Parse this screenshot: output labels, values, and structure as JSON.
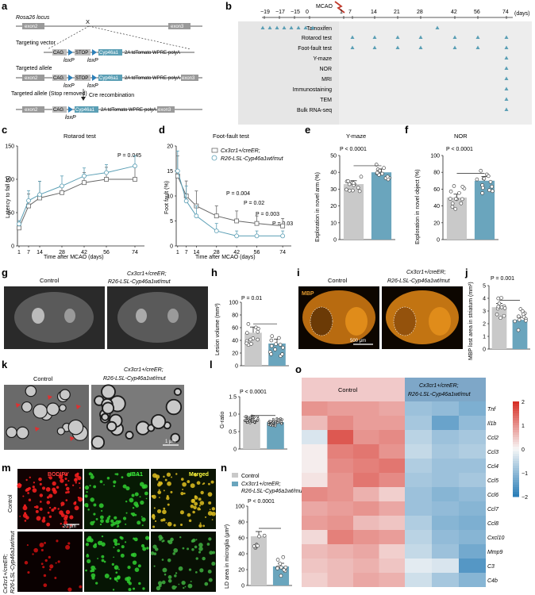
{
  "panel_labels": [
    "a",
    "b",
    "c",
    "d",
    "e",
    "f",
    "g",
    "h",
    "i",
    "j",
    "k",
    "l",
    "m",
    "n",
    "o"
  ],
  "panel_a": {
    "locus_label": "Rosa26 locus",
    "vector_label": "Targeting vector",
    "allele_label": "Targeted allele",
    "removed_label": "Targeted allele (Stop removed)",
    "cre_label": "Cre recombination",
    "exon2": "exon2",
    "exon3": "exon3",
    "cag": "CAG",
    "stop": "STOP",
    "gene": "Cyp46a1",
    "cassette": "2A  tdTomato  WPRE-polyA",
    "loxp": "loxP",
    "cross": "X"
  },
  "panel_b": {
    "mcao_label": "MCAO",
    "days_label": "(days)",
    "ticks": [
      "−19",
      "−17",
      "−15",
      "0",
      "1",
      "7",
      "14",
      "21",
      "28",
      "42",
      "56",
      "74"
    ],
    "rows": [
      "Tamoxifen",
      "Rotarod test",
      "Foot-fault test",
      "Y-maze",
      "NOR",
      "MRI",
      "Immunostaining",
      "TEM",
      "Bulk RNA-seq"
    ]
  },
  "panel_c": {
    "title": "Rotarod test",
    "ylabel": "Latency to fall (s)",
    "xlabel": "Time after MCAO (days)",
    "pvalue": "P = 0.045",
    "xticks": [
      "1",
      "7",
      "14",
      "28",
      "42",
      "56",
      "74"
    ],
    "yticks": [
      "0",
      "50",
      "100",
      "150"
    ]
  },
  "panel_d": {
    "title": "Foot-fault test",
    "ylabel": "Foot fault (%)",
    "xlabel": "Time after MCAO (days)",
    "legend_1": "Cx3cr1+/creER;",
    "legend_2": "R26-LSL-Cyp46a1wt/mut",
    "p1": "P = 0.004",
    "p2": "P = 0.02",
    "p3": "P = 0.003",
    "p4": "P = 0.03",
    "xticks": [
      "1",
      "7",
      "14",
      "28",
      "42",
      "56",
      "74"
    ],
    "yticks": [
      "0",
      "5",
      "10",
      "15",
      "20"
    ]
  },
  "panel_e": {
    "title": "Y-maze",
    "ylabel": "Exploration in novel arm (%)",
    "pvalue": "P < 0.0001",
    "yticks": [
      "0",
      "10",
      "20",
      "30",
      "40",
      "50"
    ]
  },
  "panel_f": {
    "title": "NOR",
    "ylabel": "Exploration in novel object (%)",
    "pvalue": "P < 0.0001",
    "yticks": [
      "0",
      "20",
      "40",
      "60",
      "80",
      "100"
    ]
  },
  "panel_g": {
    "control": "Control",
    "treated_1": "Cx3cr1+/creER;",
    "treated_2": "R26-LSL-Cyp46a1wt/mut"
  },
  "panel_h": {
    "ylabel": "Lesion volume (mm³)",
    "pvalue": "P = 0.01",
    "yticks": [
      "0",
      "20",
      "40",
      "60",
      "80",
      "100"
    ]
  },
  "panel_i": {
    "control": "Control",
    "treated_1": "Cx3cr1+/creER;",
    "treated_2": "R26-LSL-Cyp46a1wt/mut",
    "stain": "MBP",
    "scale": "500 μm"
  },
  "panel_j": {
    "ylabel": "MBP lost area in striatum (mm²)",
    "pvalue": "P = 0.001",
    "yticks": [
      "0",
      "1",
      "2",
      "3",
      "4",
      "5"
    ]
  },
  "panel_k": {
    "control": "Control",
    "treated_1": "Cx3cr1+/creER;",
    "treated_2": "R26-LSL-Cyp46a1wt/mut",
    "scale": "1 μm"
  },
  "panel_l": {
    "ylabel": "G-ratio",
    "pvalue": "P < 0.0001",
    "yticks": [
      "0",
      "0.5",
      "1.0",
      "1.5"
    ]
  },
  "panel_m": {
    "bodipy": "BODIPY",
    "iba1": "IBA1",
    "merged": "Merged",
    "row1": "Control",
    "row2_1": "Cx3cr1+/creER;",
    "row2_2": "R26-LSL-Cyp46a1wt/mut",
    "scale": "20 μm"
  },
  "panel_n": {
    "legend_control": "Control",
    "legend_t1": "Cx3cr1+/creER;",
    "legend_t2": "R26-LSL-Cyp46a1wt/mut",
    "ylabel": "LD area in microglia (μm²)",
    "pvalue": "P < 0.0001",
    "yticks": [
      "0",
      "20",
      "40",
      "60",
      "80",
      "100"
    ]
  },
  "panel_o": {
    "control": "Control",
    "treated_1": "Cx3cr1+/creER;",
    "treated_2": "R26-LSL-Cyp46a1wt/mut",
    "scale_ticks": [
      "2",
      "1",
      "0",
      "−1",
      "−2"
    ],
    "colors": {
      "high": "#d73027",
      "mid": "#f7f7f7",
      "low": "#2c7fb8"
    }
  },
  "colors": {
    "control": "#c8c8c8",
    "treated": "#5b9fb5",
    "bar_control": "#c9c9c9",
    "bar_treated": "#6aa5bd"
  },
  "chart_data": [
    {
      "type": "line",
      "title": "Rotarod test",
      "xlabel": "Time after MCAO (days)",
      "ylabel": "Latency to fall (s)",
      "x": [
        1,
        7,
        14,
        28,
        42,
        56,
        74
      ],
      "ylim": [
        0,
        150
      ],
      "series": [
        {
          "values": [
            27,
            60,
            72,
            80,
            95,
            100,
            100
          ]
        },
        {
          "values": [
            33,
            68,
            77,
            90,
            105,
            110,
            120
          ]
        }
      ]
    },
    {
      "type": "line",
      "title": "Foot-fault test",
      "xlabel": "Time after MCAO (days)",
      "ylabel": "Foot fault (%)",
      "x": [
        1,
        7,
        14,
        28,
        42,
        56,
        74
      ],
      "ylim": [
        0,
        20
      ],
      "series": [
        {
          "name": "Cx3cr1+/creER;",
          "values": [
            14,
            10,
            8,
            6,
            5,
            4.5,
            4
          ]
        },
        {
          "name": "R26-LSL-Cyp46a1wt/mut",
          "values": [
            15,
            9,
            6,
            3,
            2,
            2,
            2
          ]
        }
      ]
    },
    {
      "type": "bar",
      "title": "Y-maze",
      "ylabel": "Exploration in novel arm (%)",
      "categories": [
        "Control",
        "Cx3cr1+/creER;R26-LSL-Cyp46a1wt/mut"
      ],
      "values": [
        33,
        40
      ],
      "ylim": [
        0,
        50
      ]
    },
    {
      "type": "bar",
      "title": "NOR",
      "ylabel": "Exploration in novel object (%)",
      "categories": [
        "Control",
        "Cx3cr1+/creER;R26-LSL-Cyp46a1wt/mut"
      ],
      "values": [
        50,
        70
      ],
      "ylim": [
        0,
        100
      ]
    },
    {
      "type": "bar",
      "ylabel": "Lesion volume (mm³)",
      "categories": [
        "Control",
        "Cx3cr1+/creER;R26-LSL-Cyp46a1wt/mut"
      ],
      "values": [
        52,
        35
      ],
      "ylim": [
        0,
        100
      ]
    },
    {
      "type": "bar",
      "ylabel": "MBP lost area in striatum (mm²)",
      "categories": [
        "Control",
        "Cx3cr1+/creER;R26-LSL-Cyp46a1wt/mut"
      ],
      "values": [
        3.3,
        2.3
      ],
      "ylim": [
        0,
        5
      ]
    },
    {
      "type": "bar",
      "ylabel": "G-ratio",
      "categories": [
        "Control",
        "Cx3cr1+/creER;R26-LSL-Cyp46a1wt/mut"
      ],
      "values": [
        0.85,
        0.77
      ],
      "ylim": [
        0,
        1.5
      ]
    },
    {
      "type": "bar",
      "ylabel": "LD area in microglia (μm²)",
      "categories": [
        "Control",
        "Cx3cr1+/creER;R26-LSL-Cyp46a1wt/mut"
      ],
      "values": [
        62,
        24
      ],
      "ylim": [
        0,
        100
      ]
    },
    {
      "type": "heatmap",
      "rows": [
        "Tnf",
        "Il1b",
        "Ccl2",
        "Ccl3",
        "Ccl4",
        "Ccl5",
        "Ccl6",
        "Ccl7",
        "Ccl8",
        "Cxcl10",
        "Mmp9",
        "C3",
        "C4b"
      ],
      "values": [
        [
          1.0,
          0.9,
          0.9,
          0.8,
          -0.9,
          -1.0,
          -1.2
        ],
        [
          0.6,
          1.1,
          0.9,
          0.9,
          -0.8,
          -1.4,
          -1.0
        ],
        [
          -0.3,
          1.6,
          1.0,
          1.1,
          -0.6,
          -0.9,
          -0.8
        ],
        [
          0.1,
          1.2,
          1.3,
          1.0,
          -0.5,
          -0.8,
          -0.7
        ],
        [
          0.1,
          1.1,
          1.2,
          1.3,
          -0.7,
          -0.9,
          -0.9
        ],
        [
          0.2,
          1.0,
          1.3,
          1.1,
          -0.8,
          -0.9,
          -0.8
        ],
        [
          1.1,
          1.0,
          0.7,
          0.4,
          -0.9,
          -1.1,
          -1.0
        ],
        [
          0.8,
          0.9,
          1.0,
          0.8,
          -0.9,
          -1.0,
          -1.1
        ],
        [
          0.9,
          1.0,
          0.6,
          0.5,
          -0.7,
          -1.1,
          -1.2
        ],
        [
          0.3,
          1.2,
          1.0,
          0.9,
          -0.6,
          -1.0,
          -1.1
        ],
        [
          0.6,
          0.7,
          0.8,
          0.4,
          -0.5,
          -0.9,
          -1.3
        ],
        [
          0.5,
          0.6,
          0.7,
          0.5,
          -0.2,
          -0.3,
          -1.6
        ],
        [
          0.4,
          0.6,
          0.8,
          0.7,
          -0.4,
          -0.8,
          -1.1
        ]
      ]
    }
  ]
}
